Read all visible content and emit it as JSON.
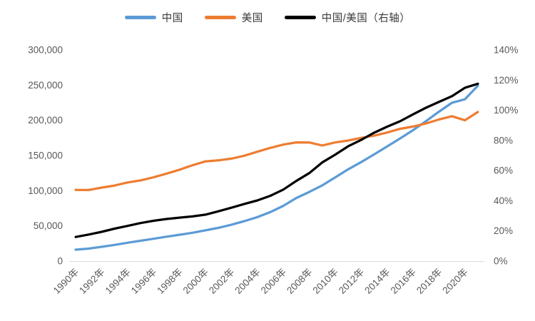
{
  "chart_data": {
    "type": "line",
    "title": "",
    "legend_position": "top",
    "grid": false,
    "x": [
      1990,
      1991,
      1992,
      1993,
      1994,
      1995,
      1996,
      1997,
      1998,
      1999,
      2000,
      2001,
      2002,
      2003,
      2004,
      2005,
      2006,
      2007,
      2008,
      2009,
      2010,
      2011,
      2012,
      2013,
      2014,
      2015,
      2016,
      2017,
      2018,
      2019,
      2020,
      2021
    ],
    "x_tick_labels": [
      "1990年",
      "1992年",
      "1994年",
      "1996年",
      "1998年",
      "2000年",
      "2002年",
      "2004年",
      "2006年",
      "2008年",
      "2010年",
      "2012年",
      "2014年",
      "2016年",
      "2018年",
      "2020年"
    ],
    "x_tick_every": 2,
    "series": [
      {
        "name": "中国",
        "axis": "left",
        "color": "#5B9BD5",
        "values": [
          16200,
          17710,
          20220,
          23030,
          26020,
          28880,
          31740,
          34660,
          37360,
          40240,
          43660,
          47280,
          51580,
          56740,
          62470,
          69590,
          78430,
          89570,
          98260,
          107500,
          118890,
          130300,
          140600,
          151570,
          162790,
          174190,
          186030,
          198870,
          212190,
          224920,
          229870,
          249180
        ]
      },
      {
        "name": "美国",
        "axis": "left",
        "color": "#ED7D31",
        "values": [
          101000,
          100900,
          104430,
          107350,
          111650,
          114660,
          119020,
          124260,
          129850,
          136080,
          141660,
          143080,
          145510,
          149730,
          155420,
          160860,
          165530,
          168670,
          168500,
          164290,
          168560,
          171260,
          175030,
          178180,
          182630,
          187930,
          191120,
          195520,
          201190,
          205820,
          200060,
          211860
        ]
      },
      {
        "name": "中国/美国（右轴）",
        "axis": "right",
        "color": "#000000",
        "values": [
          16.0,
          17.6,
          19.4,
          21.5,
          23.3,
          25.2,
          26.7,
          27.9,
          28.8,
          29.6,
          30.8,
          33.0,
          35.4,
          37.9,
          40.2,
          43.3,
          47.4,
          53.1,
          58.3,
          65.4,
          70.5,
          76.1,
          80.3,
          85.1,
          89.1,
          92.7,
          97.3,
          101.7,
          105.5,
          109.3,
          114.9,
          117.6
        ]
      }
    ],
    "left_axis": {
      "min": 0,
      "max": 300000,
      "tick_labels": [
        "0",
        "50,000",
        "100,000",
        "150,000",
        "200,000",
        "250,000",
        "300,000"
      ]
    },
    "right_axis": {
      "min": 0,
      "max": 140,
      "tick_labels": [
        "0%",
        "20%",
        "40%",
        "60%",
        "80%",
        "100%",
        "120%",
        "140%"
      ]
    }
  },
  "colors": {
    "axis_line": "#D9D9D9",
    "tick_text": "#595959",
    "legend_text": "#3b3b3b",
    "background": "#FFFFFF"
  }
}
